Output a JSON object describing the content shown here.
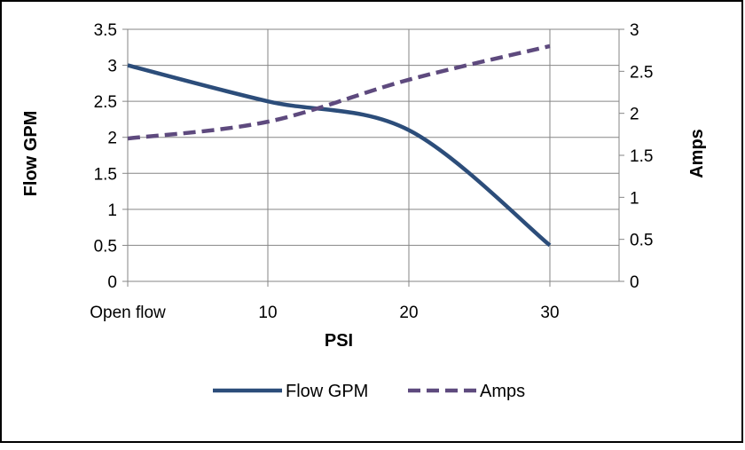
{
  "chart_data": {
    "type": "line",
    "categories": [
      "Open flow",
      "10",
      "20",
      "30"
    ],
    "xlabel": "PSI",
    "ylabel": "Flow GPM",
    "y2label": "Amps",
    "ylim": [
      0,
      3.5
    ],
    "y2lim": [
      0,
      3
    ],
    "yticks": [
      "0",
      "0.5",
      "1",
      "1.5",
      "2",
      "2.5",
      "3",
      "3.5"
    ],
    "y2ticks": [
      "0",
      "0.5",
      "1",
      "1.5",
      "2",
      "2.5",
      "3"
    ],
    "grid": true,
    "legend_position": "bottom",
    "series": [
      {
        "name": "Flow GPM",
        "axis": "left",
        "style": "solid",
        "color": "#2C4D7A",
        "values": [
          3,
          2.5,
          2.1,
          0.5
        ]
      },
      {
        "name": "Amps",
        "axis": "right",
        "style": "dashed",
        "color": "#5E4A7E",
        "values": [
          1.7,
          1.9,
          2.4,
          2.8
        ]
      }
    ]
  }
}
